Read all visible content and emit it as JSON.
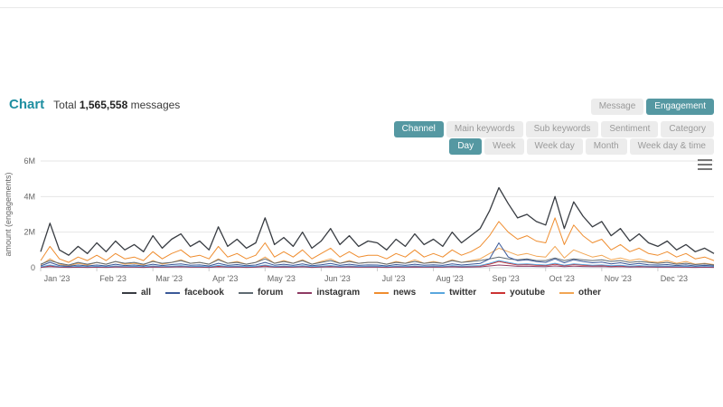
{
  "header": {
    "title": "Chart",
    "total_prefix": "Total",
    "total_value": "1,565,558",
    "total_suffix": "messages"
  },
  "toolbar": {
    "mode_buttons": [
      {
        "label": "Message",
        "active": false
      },
      {
        "label": "Engagement",
        "active": true
      }
    ],
    "group_buttons": [
      {
        "label": "Channel",
        "active": true
      },
      {
        "label": "Main keywords",
        "active": false
      },
      {
        "label": "Sub keywords",
        "active": false
      },
      {
        "label": "Sentiment",
        "active": false
      },
      {
        "label": "Category",
        "active": false
      }
    ],
    "interval_buttons": [
      {
        "label": "Day",
        "active": true
      },
      {
        "label": "Week",
        "active": false
      },
      {
        "label": "Week day",
        "active": false
      },
      {
        "label": "Month",
        "active": false
      },
      {
        "label": "Week day & time",
        "active": false
      }
    ]
  },
  "colors": {
    "accent": "#1f8fa1",
    "button_active_bg": "#5598a2",
    "button_inactive_bg": "#ececec",
    "button_inactive_text": "#9a9a9a",
    "axis_text": "#666666",
    "grid_line": "#e6e6e6"
  },
  "menu_icon": "hamburger-icon",
  "chart_data": {
    "type": "line",
    "title": "",
    "xlabel": "",
    "ylabel": "amount (engagements)",
    "ylim": [
      0,
      6000000
    ],
    "y_max_millions": 6,
    "yticks": [
      "0",
      "2M",
      "4M",
      "6M"
    ],
    "values_unit": "millions of engagements, sampled ~every 5 days across 2023",
    "grid": true,
    "legend_position": "bottom",
    "x_categories": [
      "Jan '23",
      "Feb '23",
      "Mar '23",
      "Apr '23",
      "May '23",
      "Jun '23",
      "Jul '23",
      "Aug '23",
      "Sep '23",
      "Oct '23",
      "Nov '23",
      "Dec '23"
    ],
    "series": [
      {
        "name": "all",
        "color": "#383c42",
        "values": [
          0.9,
          2.5,
          1.0,
          0.7,
          1.2,
          0.8,
          1.4,
          0.9,
          1.5,
          1.0,
          1.3,
          0.9,
          1.8,
          1.1,
          1.6,
          1.9,
          1.2,
          1.5,
          1.0,
          2.3,
          1.2,
          1.6,
          1.1,
          1.4,
          2.8,
          1.3,
          1.7,
          1.2,
          2.0,
          1.1,
          1.5,
          2.2,
          1.3,
          1.8,
          1.2,
          1.5,
          1.4,
          1.0,
          1.6,
          1.2,
          1.9,
          1.3,
          1.6,
          1.2,
          2.0,
          1.4,
          1.8,
          2.2,
          3.2,
          4.5,
          3.6,
          2.8,
          3.0,
          2.6,
          2.4,
          4.0,
          2.2,
          3.7,
          2.9,
          2.3,
          2.6,
          1.8,
          2.2,
          1.5,
          1.9,
          1.4,
          1.2,
          1.5,
          1.0,
          1.3,
          0.9,
          1.1,
          0.8
        ]
      },
      {
        "name": "facebook",
        "color": "#3b5998",
        "values": [
          0.1,
          0.3,
          0.12,
          0.08,
          0.15,
          0.1,
          0.15,
          0.1,
          0.2,
          0.12,
          0.15,
          0.1,
          0.2,
          0.12,
          0.18,
          0.22,
          0.14,
          0.16,
          0.1,
          0.25,
          0.13,
          0.18,
          0.11,
          0.15,
          0.3,
          0.14,
          0.2,
          0.13,
          0.22,
          0.11,
          0.17,
          0.24,
          0.13,
          0.2,
          0.13,
          0.16,
          0.15,
          0.1,
          0.18,
          0.13,
          0.2,
          0.14,
          0.17,
          0.13,
          0.22,
          0.15,
          0.2,
          0.24,
          0.5,
          1.4,
          0.6,
          0.4,
          0.45,
          0.35,
          0.3,
          0.5,
          0.28,
          0.45,
          0.35,
          0.28,
          0.32,
          0.22,
          0.28,
          0.18,
          0.24,
          0.17,
          0.15,
          0.18,
          0.12,
          0.16,
          0.1,
          0.13,
          0.1
        ]
      },
      {
        "name": "forum",
        "color": "#5f6a72",
        "values": [
          0.2,
          0.4,
          0.25,
          0.15,
          0.3,
          0.2,
          0.3,
          0.2,
          0.35,
          0.25,
          0.3,
          0.2,
          0.35,
          0.25,
          0.3,
          0.4,
          0.25,
          0.3,
          0.2,
          0.45,
          0.25,
          0.3,
          0.2,
          0.3,
          0.5,
          0.25,
          0.35,
          0.25,
          0.4,
          0.2,
          0.3,
          0.4,
          0.25,
          0.35,
          0.25,
          0.3,
          0.3,
          0.2,
          0.3,
          0.25,
          0.35,
          0.25,
          0.3,
          0.25,
          0.4,
          0.3,
          0.35,
          0.4,
          0.5,
          0.6,
          0.5,
          0.45,
          0.5,
          0.4,
          0.4,
          0.55,
          0.4,
          0.5,
          0.45,
          0.4,
          0.45,
          0.35,
          0.4,
          0.3,
          0.35,
          0.3,
          0.25,
          0.3,
          0.2,
          0.25,
          0.18,
          0.22,
          0.15
        ]
      },
      {
        "name": "instagram",
        "color": "#8e3b63",
        "values": [
          0.02,
          0.06,
          0.03,
          0.02,
          0.03,
          0.02,
          0.03,
          0.02,
          0.04,
          0.03,
          0.03,
          0.02,
          0.04,
          0.03,
          0.04,
          0.05,
          0.03,
          0.03,
          0.02,
          0.05,
          0.03,
          0.04,
          0.02,
          0.03,
          0.06,
          0.03,
          0.04,
          0.03,
          0.05,
          0.02,
          0.04,
          0.05,
          0.03,
          0.04,
          0.03,
          0.03,
          0.03,
          0.02,
          0.04,
          0.03,
          0.04,
          0.03,
          0.04,
          0.03,
          0.05,
          0.03,
          0.04,
          0.05,
          0.1,
          0.15,
          0.12,
          0.08,
          0.09,
          0.07,
          0.06,
          0.1,
          0.06,
          0.09,
          0.07,
          0.06,
          0.07,
          0.05,
          0.06,
          0.04,
          0.05,
          0.04,
          0.03,
          0.04,
          0.03,
          0.03,
          0.02,
          0.03,
          0.02
        ]
      },
      {
        "name": "news",
        "color": "#ef8d2f",
        "values": [
          0.4,
          1.2,
          0.5,
          0.3,
          0.6,
          0.4,
          0.7,
          0.4,
          0.8,
          0.5,
          0.6,
          0.4,
          0.9,
          0.5,
          0.8,
          1.0,
          0.6,
          0.7,
          0.5,
          1.2,
          0.6,
          0.8,
          0.5,
          0.7,
          1.4,
          0.6,
          0.9,
          0.6,
          1.0,
          0.5,
          0.8,
          1.1,
          0.6,
          0.9,
          0.6,
          0.7,
          0.7,
          0.5,
          0.8,
          0.6,
          1.0,
          0.6,
          0.8,
          0.6,
          1.0,
          0.7,
          0.9,
          1.2,
          1.8,
          2.6,
          2.0,
          1.6,
          1.8,
          1.5,
          1.4,
          2.8,
          1.3,
          2.4,
          1.8,
          1.4,
          1.6,
          1.0,
          1.3,
          0.9,
          1.1,
          0.8,
          0.7,
          0.9,
          0.6,
          0.8,
          0.5,
          0.6,
          0.4
        ]
      },
      {
        "name": "twitter",
        "color": "#5aa7de",
        "values": [
          0.05,
          0.15,
          0.06,
          0.04,
          0.08,
          0.05,
          0.08,
          0.05,
          0.1,
          0.06,
          0.08,
          0.05,
          0.1,
          0.06,
          0.09,
          0.11,
          0.07,
          0.08,
          0.05,
          0.13,
          0.07,
          0.09,
          0.06,
          0.08,
          0.15,
          0.07,
          0.1,
          0.07,
          0.11,
          0.06,
          0.09,
          0.12,
          0.07,
          0.1,
          0.07,
          0.08,
          0.08,
          0.05,
          0.09,
          0.07,
          0.1,
          0.07,
          0.09,
          0.07,
          0.11,
          0.08,
          0.1,
          0.12,
          0.25,
          0.4,
          0.3,
          0.2,
          0.22,
          0.18,
          0.15,
          0.25,
          0.14,
          0.22,
          0.18,
          0.14,
          0.16,
          0.11,
          0.14,
          0.09,
          0.12,
          0.09,
          0.08,
          0.09,
          0.06,
          0.08,
          0.05,
          0.07,
          0.05
        ]
      },
      {
        "name": "youtube",
        "color": "#cc3333",
        "values": [
          0.04,
          0.12,
          0.05,
          0.03,
          0.06,
          0.04,
          0.06,
          0.04,
          0.08,
          0.05,
          0.06,
          0.04,
          0.08,
          0.05,
          0.07,
          0.09,
          0.05,
          0.06,
          0.04,
          0.1,
          0.05,
          0.07,
          0.04,
          0.06,
          0.12,
          0.05,
          0.08,
          0.05,
          0.09,
          0.04,
          0.07,
          0.1,
          0.05,
          0.08,
          0.05,
          0.06,
          0.06,
          0.04,
          0.07,
          0.05,
          0.08,
          0.05,
          0.07,
          0.05,
          0.09,
          0.06,
          0.08,
          0.1,
          0.2,
          0.35,
          0.25,
          0.16,
          0.18,
          0.14,
          0.12,
          0.2,
          0.11,
          0.18,
          0.14,
          0.11,
          0.13,
          0.09,
          0.11,
          0.07,
          0.1,
          0.07,
          0.06,
          0.07,
          0.05,
          0.06,
          0.04,
          0.05,
          0.04
        ]
      },
      {
        "name": "other",
        "color": "#f2a654",
        "values": [
          0.15,
          0.5,
          0.2,
          0.1,
          0.25,
          0.15,
          0.3,
          0.2,
          0.35,
          0.2,
          0.25,
          0.15,
          0.4,
          0.2,
          0.3,
          0.45,
          0.25,
          0.3,
          0.2,
          0.5,
          0.25,
          0.35,
          0.2,
          0.3,
          0.6,
          0.25,
          0.4,
          0.25,
          0.45,
          0.2,
          0.35,
          0.5,
          0.25,
          0.4,
          0.25,
          0.3,
          0.3,
          0.2,
          0.35,
          0.25,
          0.45,
          0.25,
          0.35,
          0.25,
          0.45,
          0.3,
          0.4,
          0.5,
          0.8,
          1.1,
          0.9,
          0.7,
          0.8,
          0.65,
          0.6,
          1.2,
          0.55,
          1.0,
          0.8,
          0.6,
          0.7,
          0.45,
          0.55,
          0.4,
          0.5,
          0.35,
          0.3,
          0.4,
          0.25,
          0.35,
          0.2,
          0.25,
          0.18
        ]
      }
    ]
  }
}
